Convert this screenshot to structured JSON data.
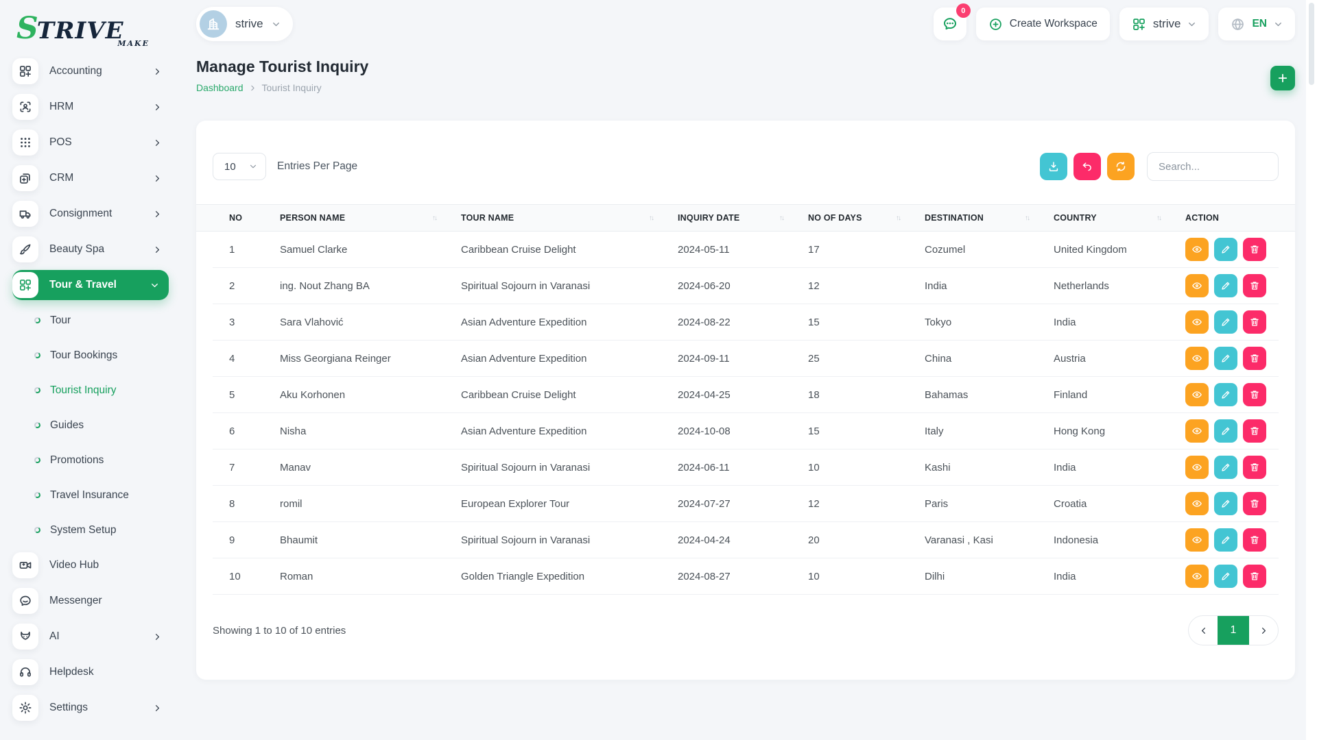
{
  "colors": {
    "primary_green": "#17a05e",
    "logo_green": "#2eb35f",
    "teal": "#43c5d3",
    "pink": "#fc2b69",
    "orange": "#fca321",
    "badge_pink": "#fb3e70",
    "avatar_blue": "#b3d0e4"
  },
  "brand": {
    "logo_s": "S",
    "logo_rest": "TRIVE",
    "logo_tagline": "MAKE"
  },
  "topbar": {
    "workspace_label": "strive",
    "chat_badge": "0",
    "create_workspace_label": "Create Workspace",
    "company_label": "strive",
    "language_label": "EN"
  },
  "page": {
    "title": "Manage Tourist Inquiry",
    "breadcrumb_home": "Dashboard",
    "breadcrumb_current": "Tourist Inquiry"
  },
  "sidebar": {
    "items": [
      {
        "type": "module",
        "label": "Accounting",
        "icon": "accounting-icon",
        "chevron": "right"
      },
      {
        "type": "module",
        "label": "HRM",
        "icon": "hrm-icon",
        "chevron": "right"
      },
      {
        "type": "module",
        "label": "POS",
        "icon": "pos-icon",
        "chevron": "right"
      },
      {
        "type": "module",
        "label": "CRM",
        "icon": "crm-icon",
        "chevron": "right"
      },
      {
        "type": "module",
        "label": "Consignment",
        "icon": "consignment-icon",
        "chevron": "right"
      },
      {
        "type": "module",
        "label": "Beauty Spa",
        "icon": "beauty-spa-icon",
        "chevron": "right"
      },
      {
        "type": "module",
        "label": "Tour & Travel",
        "icon": "tour-travel-icon",
        "chevron": "down",
        "active": true
      },
      {
        "type": "sub",
        "label": "Tour"
      },
      {
        "type": "sub",
        "label": "Tour Bookings"
      },
      {
        "type": "sub",
        "label": "Tourist Inquiry",
        "active": true
      },
      {
        "type": "sub",
        "label": "Guides"
      },
      {
        "type": "sub",
        "label": "Promotions"
      },
      {
        "type": "sub",
        "label": "Travel Insurance"
      },
      {
        "type": "sub",
        "label": "System Setup"
      },
      {
        "type": "module",
        "label": "Video Hub",
        "icon": "video-hub-icon"
      },
      {
        "type": "module",
        "label": "Messenger",
        "icon": "messenger-icon"
      },
      {
        "type": "module",
        "label": "AI",
        "icon": "ai-icon",
        "chevron": "right"
      },
      {
        "type": "module",
        "label": "Helpdesk",
        "icon": "helpdesk-icon"
      },
      {
        "type": "module",
        "label": "Settings",
        "icon": "settings-icon",
        "chevron": "right"
      }
    ]
  },
  "toolbar": {
    "entries_value": "10",
    "entries_label": "Entries Per Page",
    "search_placeholder": "Search...",
    "buttons": [
      {
        "name": "export",
        "icon": "download-icon",
        "color_key": "teal"
      },
      {
        "name": "undo",
        "icon": "undo-icon",
        "color_key": "pink"
      },
      {
        "name": "refresh",
        "icon": "refresh-icon",
        "color_key": "orange"
      }
    ]
  },
  "table": {
    "columns": [
      {
        "key": "no",
        "label": "NO",
        "sortable": false
      },
      {
        "key": "person_name",
        "label": "PERSON NAME",
        "sortable": true
      },
      {
        "key": "tour_name",
        "label": "TOUR NAME",
        "sortable": true
      },
      {
        "key": "inquiry_date",
        "label": "INQUIRY DATE",
        "sortable": true
      },
      {
        "key": "no_of_days",
        "label": "NO OF DAYS",
        "sortable": true
      },
      {
        "key": "destination",
        "label": "DESTINATION",
        "sortable": true
      },
      {
        "key": "country",
        "label": "COUNTRY",
        "sortable": true
      },
      {
        "key": "action",
        "label": "ACTION",
        "sortable": false
      }
    ],
    "actions": [
      {
        "name": "view",
        "icon": "eye-icon",
        "color_key": "orange"
      },
      {
        "name": "edit",
        "icon": "pencil-icon",
        "color_key": "teal"
      },
      {
        "name": "delete",
        "icon": "trash-icon",
        "color_key": "pink"
      }
    ],
    "rows": [
      {
        "no": "1",
        "person_name": "Samuel Clarke",
        "tour_name": "Caribbean Cruise Delight",
        "inquiry_date": "2024-05-11",
        "no_of_days": "17",
        "destination": "Cozumel",
        "country": "United Kingdom"
      },
      {
        "no": "2",
        "person_name": "ing. Nout Zhang BA",
        "tour_name": "Spiritual Sojourn in Varanasi",
        "inquiry_date": "2024-06-20",
        "no_of_days": "12",
        "destination": "India",
        "country": "Netherlands"
      },
      {
        "no": "3",
        "person_name": "Sara Vlahović",
        "tour_name": "Asian Adventure Expedition",
        "inquiry_date": "2024-08-22",
        "no_of_days": "15",
        "destination": "Tokyo",
        "country": "India"
      },
      {
        "no": "4",
        "person_name": "Miss Georgiana Reinger",
        "tour_name": "Asian Adventure Expedition",
        "inquiry_date": "2024-09-11",
        "no_of_days": "25",
        "destination": "China",
        "country": "Austria"
      },
      {
        "no": "5",
        "person_name": "Aku Korhonen",
        "tour_name": "Caribbean Cruise Delight",
        "inquiry_date": "2024-04-25",
        "no_of_days": "18",
        "destination": "Bahamas",
        "country": "Finland"
      },
      {
        "no": "6",
        "person_name": "Nisha",
        "tour_name": "Asian Adventure Expedition",
        "inquiry_date": "2024-10-08",
        "no_of_days": "15",
        "destination": "Italy",
        "country": "Hong Kong"
      },
      {
        "no": "7",
        "person_name": "Manav",
        "tour_name": "Spiritual Sojourn in Varanasi",
        "inquiry_date": "2024-06-11",
        "no_of_days": "10",
        "destination": "Kashi",
        "country": "India"
      },
      {
        "no": "8",
        "person_name": "romil",
        "tour_name": "European Explorer Tour",
        "inquiry_date": "2024-07-27",
        "no_of_days": "12",
        "destination": "Paris",
        "country": "Croatia"
      },
      {
        "no": "9",
        "person_name": "Bhaumit",
        "tour_name": "Spiritual Sojourn in Varanasi",
        "inquiry_date": "2024-04-24",
        "no_of_days": "20",
        "destination": "Varanasi , Kasi",
        "country": "Indonesia"
      },
      {
        "no": "10",
        "person_name": "Roman",
        "tour_name": "Golden Triangle Expedition",
        "inquiry_date": "2024-08-27",
        "no_of_days": "10",
        "destination": "Dilhi",
        "country": "India"
      }
    ]
  },
  "footer": {
    "summary": "Showing 1 to 10 of 10 entries",
    "page_current": "1"
  }
}
